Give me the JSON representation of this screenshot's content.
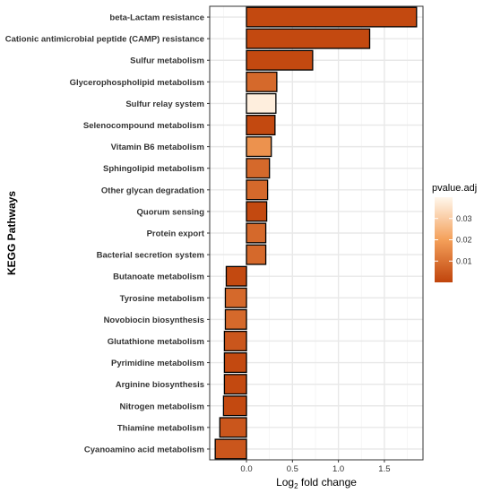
{
  "chart_data": {
    "type": "bar",
    "orientation": "horizontal",
    "ylabel": "KEGG Pathways",
    "xlabel_parts": {
      "prefix": "Log",
      "subscript": "2",
      "suffix": " fold change"
    },
    "xlim": [
      -0.4,
      1.92
    ],
    "x_ticks": [
      0.0,
      0.5,
      1.0,
      1.5
    ],
    "x_tick_labels": [
      "0.0",
      "0.5",
      "1.0",
      "1.5"
    ],
    "grid": true,
    "categories": [
      "beta-Lactam resistance",
      "Cationic antimicrobial peptide (CAMP) resistance",
      "Sulfur metabolism",
      "Glycerophospholipid metabolism",
      "Sulfur relay system",
      "Selenocompound metabolism",
      "Vitamin B6 metabolism",
      "Sphingolipid metabolism",
      "Other glycan degradation",
      "Quorum sensing",
      "Protein export",
      "Bacterial secretion system",
      "Butanoate metabolism",
      "Tyrosine metabolism",
      "Novobiocin biosynthesis",
      "Glutathione metabolism",
      "Pyrimidine metabolism",
      "Arginine biosynthesis",
      "Nitrogen metabolism",
      "Thiamine metabolism",
      "Cyanoamino acid metabolism"
    ],
    "values": [
      1.85,
      1.34,
      0.72,
      0.33,
      0.32,
      0.31,
      0.27,
      0.25,
      0.23,
      0.22,
      0.21,
      0.21,
      -0.22,
      -0.23,
      -0.23,
      -0.24,
      -0.24,
      -0.24,
      -0.25,
      -0.29,
      -0.34
    ],
    "pvalue_adj": [
      0.001,
      0.001,
      0.001,
      0.008,
      0.038,
      0.001,
      0.017,
      0.008,
      0.008,
      0.001,
      0.008,
      0.008,
      0.001,
      0.008,
      0.008,
      0.004,
      0.001,
      0.001,
      0.001,
      0.004,
      0.004
    ],
    "legend": {
      "title": "pvalue.adj",
      "placement": "right",
      "range": [
        0.0,
        0.04
      ],
      "ticks": [
        "0.03",
        "0.02",
        "0.01"
      ],
      "tick_values": [
        0.03,
        0.02,
        0.01
      ],
      "color_low": "#c0440c",
      "color_high": "#fff7ec"
    }
  }
}
